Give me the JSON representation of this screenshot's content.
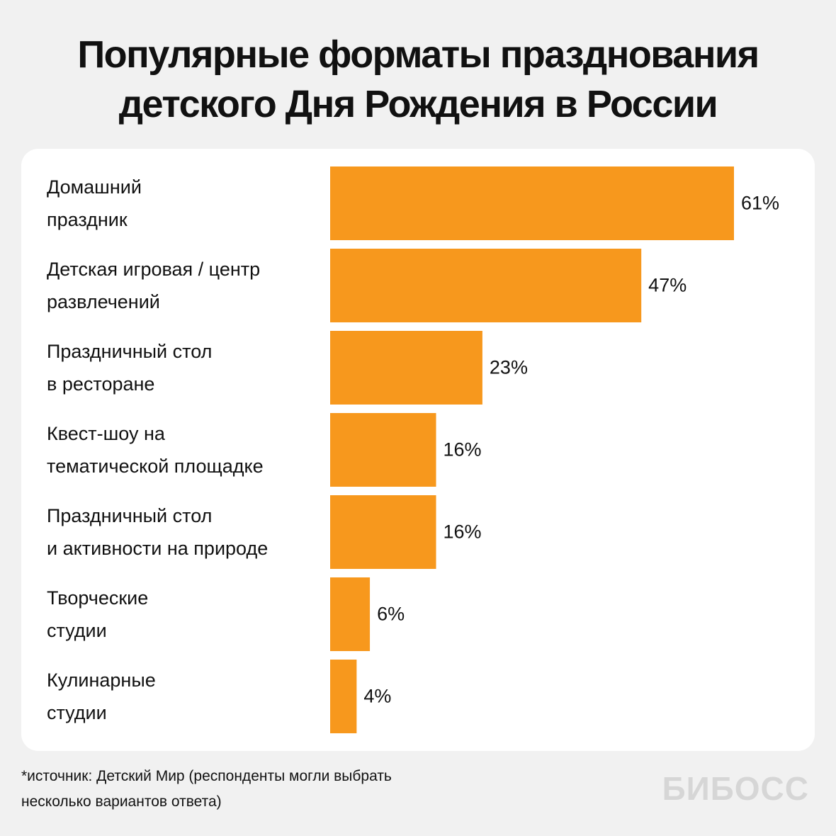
{
  "chart_data": {
    "type": "bar",
    "title": "Популярные форматы празднования\nдетского Дня Рождения в России",
    "categories": [
      "Домашний\nпраздник",
      "Детская игровая / центр\nразвлечений",
      "Праздничный стол\nв ресторане",
      "Квест-шоу на\nтематической площадке",
      "Праздничный стол\nи активности на природе",
      "Творческие\nстудии",
      "Кулинарные\nстудии"
    ],
    "values": [
      61,
      47,
      23,
      16,
      16,
      6,
      4
    ],
    "value_labels": [
      "61%",
      "47%",
      "23%",
      "16%",
      "16%",
      "6%",
      "4%"
    ],
    "color": "#f7981d",
    "footnote": "*источник: Детский Мир (респонденты могли выбрать\nнесколько вариантов ответа)",
    "logo": "БИБОСС"
  }
}
